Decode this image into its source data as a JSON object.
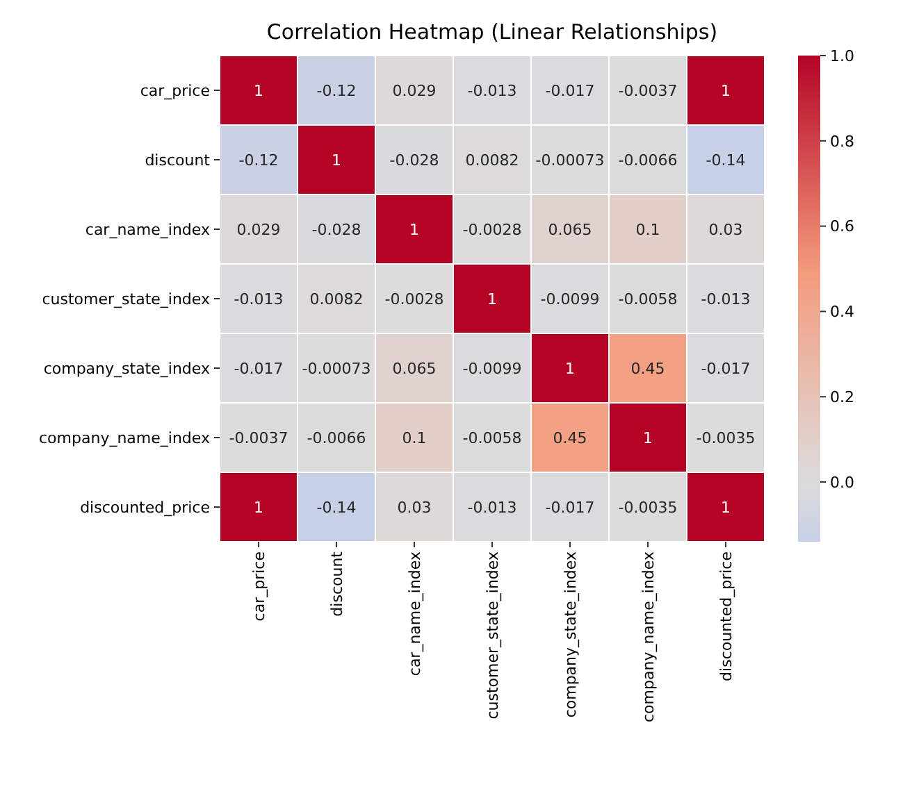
{
  "chart_data": {
    "type": "heatmap",
    "title": "Correlation Heatmap (Linear Relationships)",
    "categories": [
      "car_price",
      "discount",
      "car_name_index",
      "customer_state_index",
      "company_state_index",
      "company_name_index",
      "discounted_price"
    ],
    "y_categories": [
      "car_price",
      "discount",
      "car_name_index",
      "customer_state_index",
      "company_state_index",
      "company_name_index",
      "discounted_price"
    ],
    "cells": [
      [
        1,
        -0.12,
        0.029,
        -0.013,
        -0.017,
        -0.0037,
        1
      ],
      [
        -0.12,
        1,
        -0.028,
        0.0082,
        -0.00073,
        -0.0066,
        -0.14
      ],
      [
        0.029,
        -0.028,
        1,
        -0.0028,
        0.065,
        0.1,
        0.03
      ],
      [
        -0.013,
        0.0082,
        -0.0028,
        1,
        -0.0099,
        -0.0058,
        -0.013
      ],
      [
        -0.017,
        -0.00073,
        0.065,
        -0.0099,
        1,
        0.45,
        -0.017
      ],
      [
        -0.0037,
        -0.0066,
        0.1,
        -0.0058,
        0.45,
        1,
        -0.0035
      ],
      [
        1,
        -0.14,
        0.03,
        -0.013,
        -0.017,
        -0.0035,
        1
      ]
    ],
    "data_labels": true,
    "clim": [
      -0.14,
      1
    ],
    "cticks": [
      {
        "value": 0,
        "label": "0.0"
      },
      {
        "value": 0.2,
        "label": "0.2"
      },
      {
        "value": 0.4,
        "label": "0.4"
      },
      {
        "value": 0.6,
        "label": "0.6"
      },
      {
        "value": 0.8,
        "label": "0.8"
      },
      {
        "value": 1,
        "label": "1.0"
      }
    ]
  }
}
